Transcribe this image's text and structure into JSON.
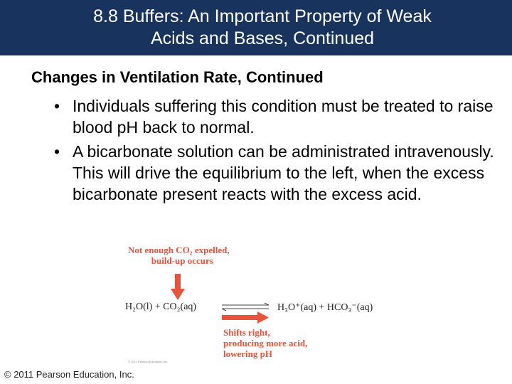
{
  "title": {
    "line1": "8.8 Buffers: An Important Property of Weak",
    "line2": "Acids and Bases, Continued"
  },
  "subheading": "Changes in Ventilation Rate, Continued",
  "bullets": [
    "Individuals suffering this condition must be treated to raise blood pH back to normal.",
    "A bicarbonate solution can be administrated intravenously. This will drive the equilibrium to the left, when the excess bicarbonate present reacts with the excess acid."
  ],
  "figure": {
    "top_note_line1": "Not enough CO₂ expelled,",
    "top_note_line2": "build-up occurs",
    "equation_left": "H₂O(l) + CO₂(aq)",
    "equation_right": "H₃O⁺(aq) + HCO₃⁻(aq)",
    "bottom_note_line1": "Shifts right,",
    "bottom_note_line2": "producing more acid,",
    "bottom_note_line3": "lowering pH",
    "fig_copyright": "© 2011 Pearson Education, Inc.",
    "accent_color": "#e8533a"
  },
  "footer": "© 2011 Pearson Education, Inc."
}
